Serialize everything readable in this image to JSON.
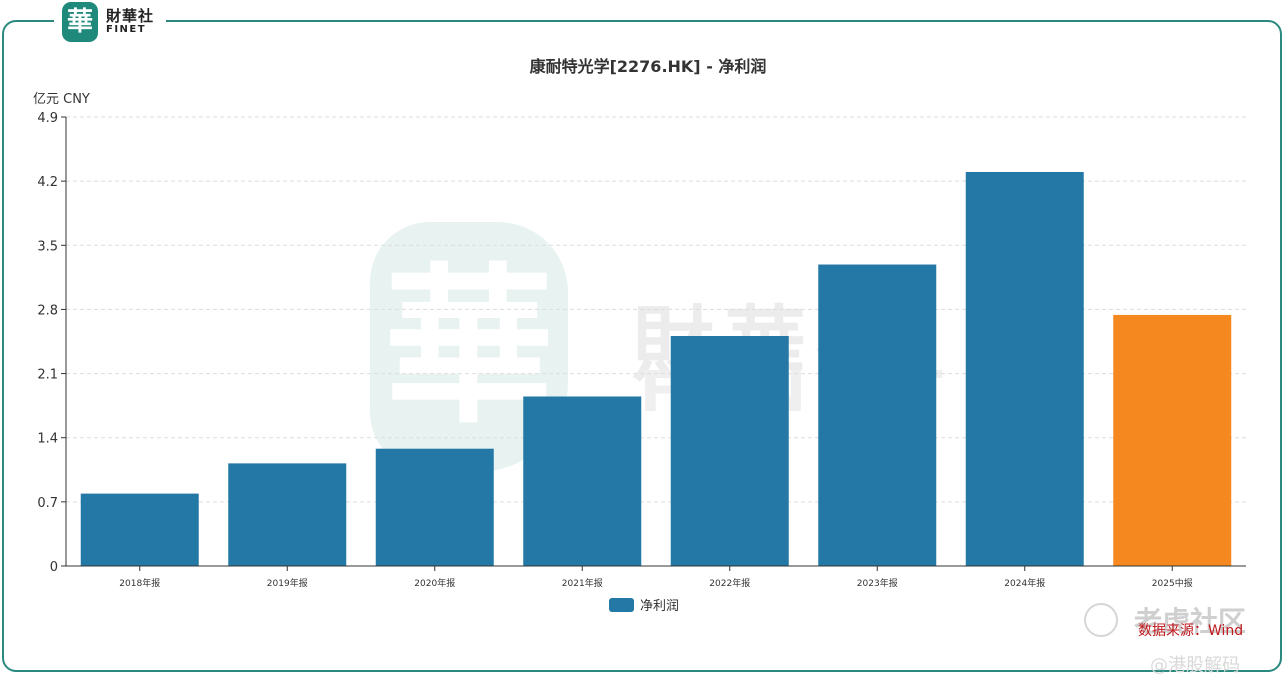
{
  "brand": {
    "seal_char": "華",
    "name_cn": "財華社",
    "name_en": "FINET"
  },
  "watermarks": {
    "center_seal_char": "華",
    "center_cn": "財華社",
    "center_en": "FINET",
    "corner_text": "老虎社区",
    "bottom_text": "@港股解码"
  },
  "source_note": "数据来源：Wind",
  "chart_data": {
    "type": "bar",
    "title": "康耐特光学[2276.HK] - 净利润",
    "unit_label": "亿元  CNY",
    "categories": [
      "2018年报",
      "2019年报",
      "2020年报",
      "2021年报",
      "2022年报",
      "2023年报",
      "2024年报",
      "2025中报"
    ],
    "series": [
      {
        "name": "净利润",
        "values": [
          0.79,
          1.12,
          1.28,
          1.85,
          2.51,
          3.29,
          4.3,
          2.74
        ],
        "colors": [
          "#2378a6",
          "#2378a6",
          "#2378a6",
          "#2378a6",
          "#2378a6",
          "#2378a6",
          "#2378a6",
          "#f5891f"
        ]
      }
    ],
    "yticks": [
      0,
      0.7,
      1.4,
      2.1,
      2.8,
      3.5,
      4.2,
      4.9
    ],
    "ytick_labels": [
      "0",
      "0.7",
      "1.4",
      "2.1",
      "2.8",
      "3.5",
      "4.2",
      "4.9"
    ],
    "ylim": [
      0,
      4.9
    ],
    "grid": true,
    "legend": "bottom-center",
    "legend_color": "#2378a6"
  }
}
